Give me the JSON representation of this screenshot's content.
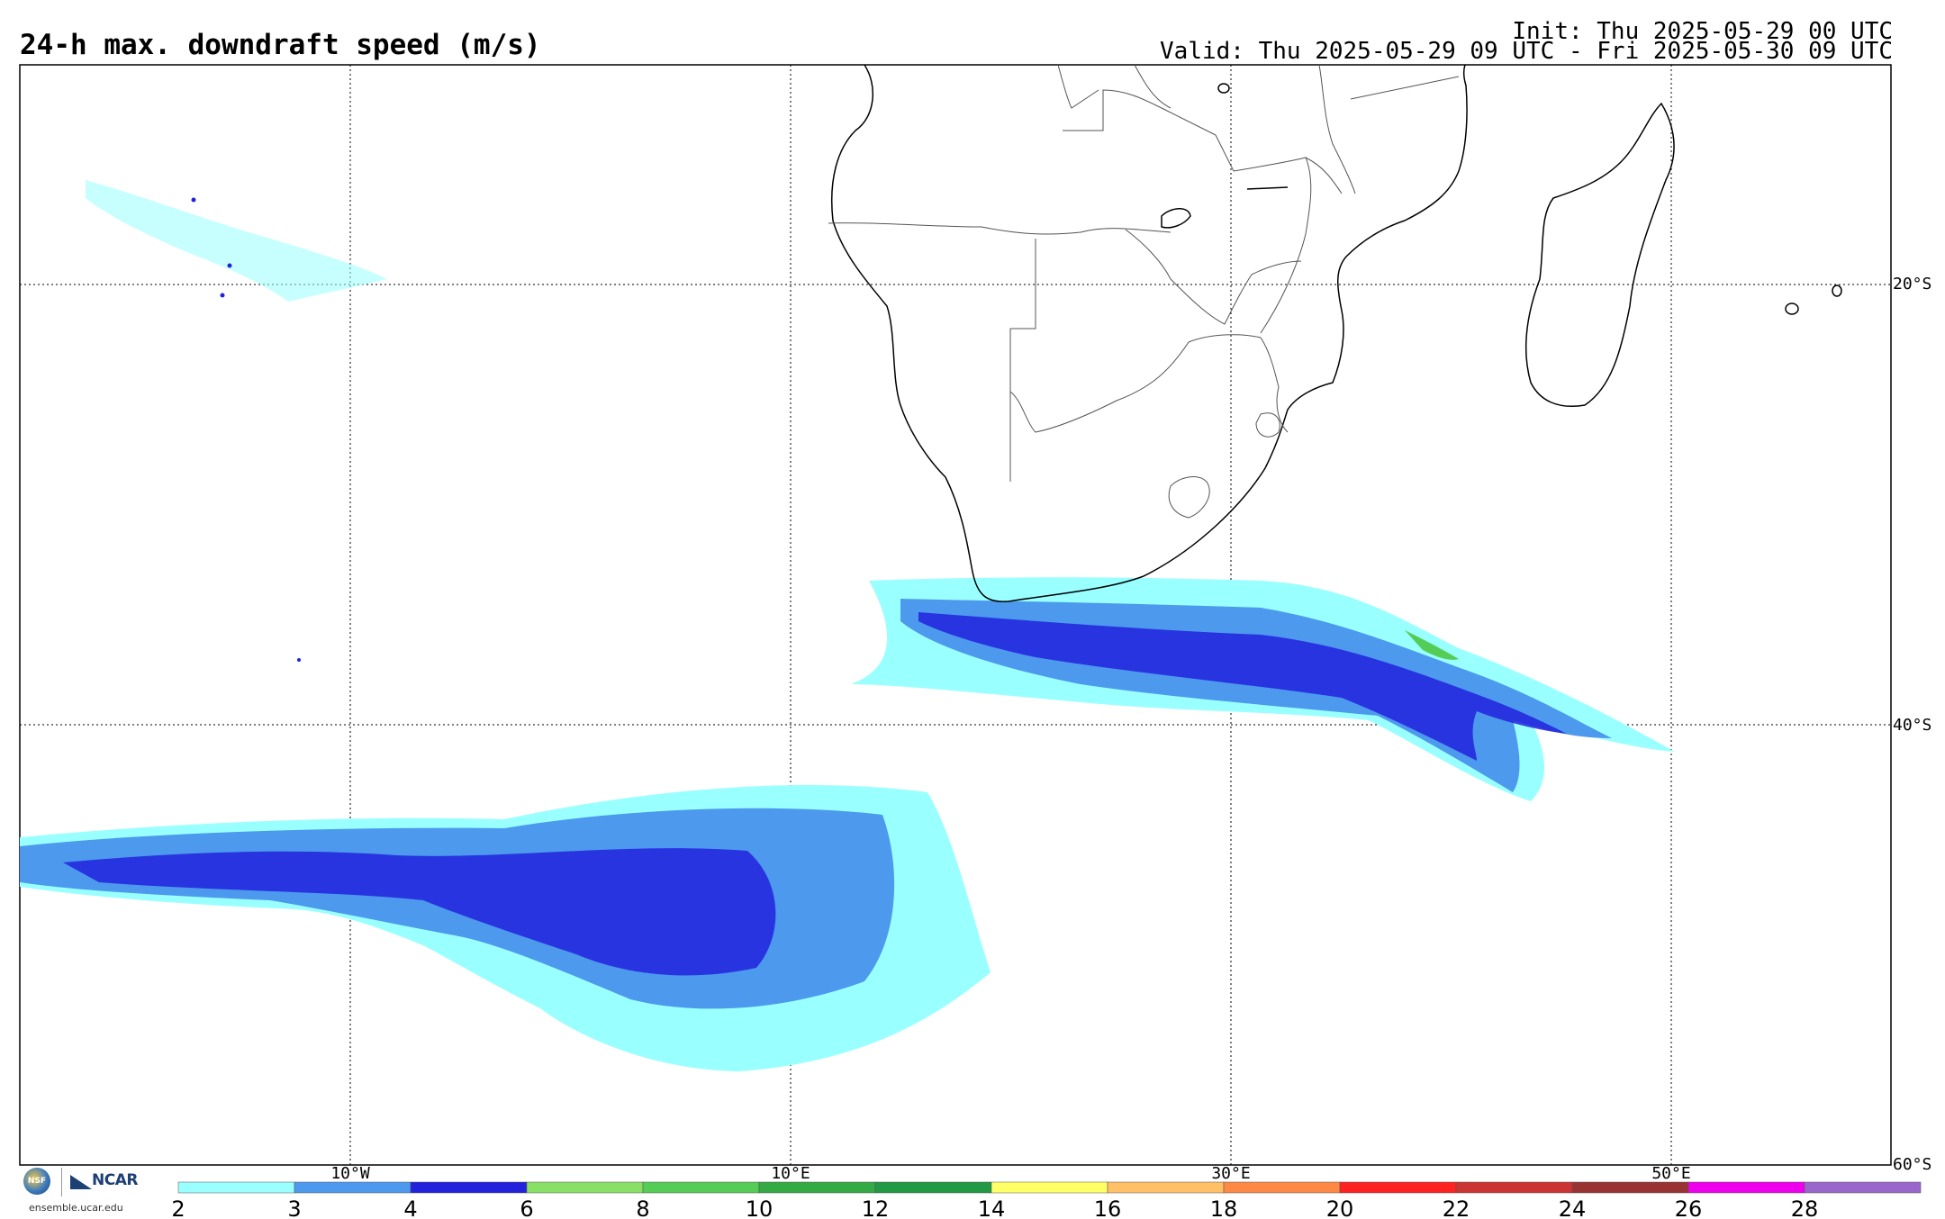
{
  "header": {
    "title": "24-h max. downdraft speed (m/s)",
    "init": "Init: Thu 2025-05-29 00 UTC",
    "valid": "Valid: Thu 2025-05-29 09 UTC - Fri 2025-05-30 09 UTC"
  },
  "map": {
    "lat_labels": [
      "20°S",
      "40°S",
      "60°S"
    ],
    "lon_labels": [
      "10°W",
      "10°E",
      "30°E",
      "50°E"
    ]
  },
  "colorbar": {
    "ticks": [
      "2",
      "3",
      "4",
      "6",
      "8",
      "10",
      "12",
      "14",
      "16",
      "18",
      "20",
      "22",
      "24",
      "26",
      "28"
    ],
    "colors": [
      "#99ffff",
      "#4c99ee",
      "#2222dd",
      "#88e066",
      "#55cc55",
      "#33aa44",
      "#229944",
      "#ffff66",
      "#ffc066",
      "#ff8844",
      "#ff2222",
      "#cc3333",
      "#993333",
      "#ee00ee",
      "#9966cc"
    ]
  },
  "logos": {
    "nsf_text": "NSF",
    "ncar_text": "NCAR",
    "url": "ensemble.ucar.edu"
  }
}
